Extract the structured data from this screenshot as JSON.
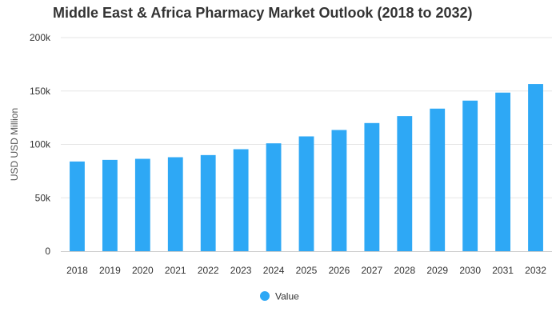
{
  "chart_data": {
    "type": "bar",
    "title": "Middle East & Africa Pharmacy Market Outlook (2018 to 2032)",
    "xlabel": "",
    "ylabel": "USD USD Million",
    "categories": [
      "2018",
      "2019",
      "2020",
      "2021",
      "2022",
      "2023",
      "2024",
      "2025",
      "2026",
      "2027",
      "2028",
      "2029",
      "2030",
      "2031",
      "2032"
    ],
    "series": [
      {
        "name": "Value",
        "color": "#2ea8f5",
        "values": [
          84000,
          85500,
          86500,
          88000,
          90000,
          95500,
          101000,
          107500,
          113500,
          120000,
          126500,
          133500,
          141000,
          148500,
          156500
        ]
      }
    ],
    "ylim": [
      0,
      200000
    ],
    "yticks": [
      0,
      50000,
      100000,
      150000,
      200000
    ],
    "ytick_labels": [
      "0",
      "50k",
      "100k",
      "150k",
      "200k"
    ],
    "grid": true,
    "legend_position": "bottom-center"
  }
}
